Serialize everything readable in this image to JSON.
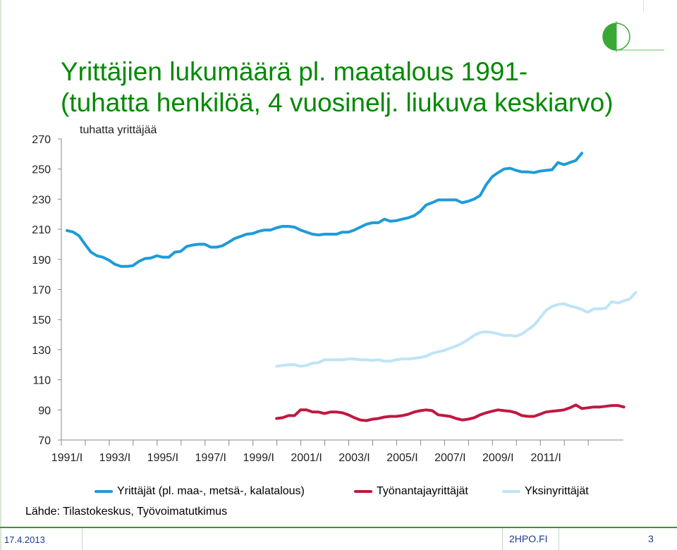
{
  "slide": {
    "title_line1": "Yrittäjien lukumäärä pl. maatalous 1991-",
    "title_line2": "(tuhatta henkilöä, 4 vuosinelj. liukuva keskiarvo)",
    "source": "Lähde: Tilastokeskus, Työvoimatutkimus",
    "footer_date": "17.4.2013",
    "footer_site": "2HPO.FI",
    "page_number": "3"
  },
  "colors": {
    "title": "#008a00",
    "series_total": "#1f9bd7",
    "series_employers": "#c0183f",
    "series_self": "#bfe4f6",
    "footer_line": "#2e9e2e"
  },
  "chart_data": {
    "type": "line",
    "ylabel": "tuhatta yrittäjää",
    "ylim": [
      70,
      270
    ],
    "yticks": [
      70,
      90,
      110,
      130,
      150,
      170,
      190,
      210,
      230,
      250,
      270
    ],
    "x_tick_labels": [
      "1991/I",
      "1993/I",
      "1995/I",
      "1997/I",
      "1999/I",
      "2001/I",
      "2003/I",
      "2005/I",
      "2007/I",
      "2009/I",
      "2011/I"
    ],
    "quarters_per_year": 4,
    "start_year": 1991,
    "grid": false,
    "legend_position": "bottom",
    "series": [
      {
        "name": "Yrittäjät (pl. maa-, metsä-, kalatalous)",
        "start_quarter_index": 0,
        "values": [
          209.1,
          208.2,
          205.7,
          200.0,
          194.8,
          192.4,
          191.4,
          189.5,
          186.7,
          185.3,
          185.3,
          185.8,
          188.6,
          190.5,
          190.9,
          192.4,
          191.4,
          191.4,
          194.8,
          195.3,
          198.6,
          199.5,
          200.0,
          200.0,
          198.1,
          198.1,
          199.1,
          201.4,
          203.8,
          205.2,
          206.7,
          207.1,
          208.6,
          209.5,
          209.5,
          211.0,
          211.9,
          211.9,
          211.4,
          209.5,
          208.1,
          206.7,
          206.2,
          206.7,
          206.7,
          206.7,
          208.1,
          208.1,
          209.5,
          211.4,
          213.3,
          214.3,
          214.3,
          216.7,
          215.3,
          215.7,
          216.7,
          217.6,
          219.1,
          221.9,
          226.2,
          227.6,
          229.5,
          229.5,
          229.5,
          229.5,
          227.6,
          228.6,
          230.0,
          232.4,
          239.5,
          244.8,
          247.6,
          250.0,
          250.5,
          249.1,
          248.1,
          248.1,
          247.6,
          248.6,
          249.1,
          249.5,
          254.3,
          252.9,
          254.3,
          255.7,
          260.5
        ]
      },
      {
        "name": "Työnantajayrittäjät",
        "start_quarter_index": 35,
        "values": [
          84.3,
          84.8,
          86.2,
          86.2,
          90.0,
          90.0,
          88.6,
          88.6,
          87.6,
          88.6,
          88.6,
          88.1,
          86.7,
          84.8,
          83.3,
          82.9,
          83.8,
          84.3,
          85.2,
          85.7,
          85.7,
          86.2,
          87.1,
          88.6,
          89.5,
          90.0,
          89.5,
          86.7,
          86.2,
          85.7,
          84.3,
          83.3,
          83.8,
          84.8,
          86.7,
          88.1,
          89.1,
          90.0,
          89.5,
          89.1,
          88.1,
          86.2,
          85.7,
          85.7,
          87.1,
          88.6,
          89.1,
          89.5,
          90.0,
          91.4,
          93.3,
          90.9,
          91.4,
          91.9,
          91.9,
          92.4,
          92.9,
          92.9,
          91.9
        ]
      },
      {
        "name": "Yksinyrittäjät",
        "start_quarter_index": 35,
        "values": [
          119.0,
          119.5,
          120.0,
          120.0,
          119.0,
          119.5,
          121.0,
          121.4,
          123.3,
          123.3,
          123.3,
          123.3,
          123.8,
          123.8,
          123.3,
          123.3,
          122.9,
          123.3,
          122.4,
          122.4,
          123.3,
          123.8,
          123.8,
          124.3,
          124.8,
          125.7,
          127.6,
          128.6,
          129.5,
          131.0,
          132.4,
          134.3,
          136.7,
          139.5,
          141.4,
          141.9,
          141.4,
          140.5,
          139.5,
          139.5,
          139.0,
          140.5,
          143.3,
          146.2,
          151.0,
          156.2,
          158.6,
          160.0,
          160.5,
          159.0,
          158.1,
          156.7,
          154.8,
          157.1,
          157.1,
          157.6,
          161.9,
          161.0,
          162.4,
          163.8,
          168.1
        ]
      }
    ]
  }
}
